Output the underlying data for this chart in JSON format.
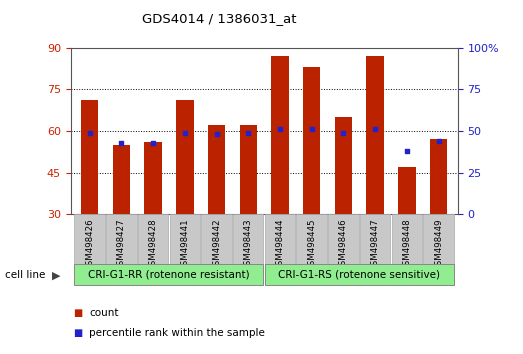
{
  "title": "GDS4014 / 1386031_at",
  "samples": [
    "GSM498426",
    "GSM498427",
    "GSM498428",
    "GSM498441",
    "GSM498442",
    "GSM498443",
    "GSM498444",
    "GSM498445",
    "GSM498446",
    "GSM498447",
    "GSM498448",
    "GSM498449"
  ],
  "counts": [
    71,
    55,
    56,
    71,
    62,
    62,
    87,
    83,
    65,
    87,
    47,
    57
  ],
  "percentile_ranks": [
    49,
    43,
    43,
    49,
    48,
    49,
    51,
    51,
    49,
    51,
    38,
    44
  ],
  "groups": [
    {
      "label": "CRI-G1-RR (rotenone resistant)",
      "color": "#90EE90"
    },
    {
      "label": "CRI-G1-RS (rotenone sensitive)",
      "color": "#90EE90"
    }
  ],
  "ylim_left": [
    30,
    90
  ],
  "ylim_right": [
    0,
    100
  ],
  "yticks_left": [
    30,
    45,
    60,
    75,
    90
  ],
  "yticks_right": [
    0,
    25,
    50,
    75,
    100
  ],
  "bar_color": "#BB2200",
  "dot_color": "#2222CC",
  "bar_width": 0.55,
  "background_color": "#ffffff",
  "grid_color": "#000000",
  "tick_label_color_left": "#CC2200",
  "tick_label_color_right": "#2222CC",
  "legend_count_color": "#BB2200",
  "legend_pct_color": "#2222CC",
  "cell_line_label": "cell line",
  "group_box_color": "#90EE90",
  "label_area_color": "#C8C8C8"
}
